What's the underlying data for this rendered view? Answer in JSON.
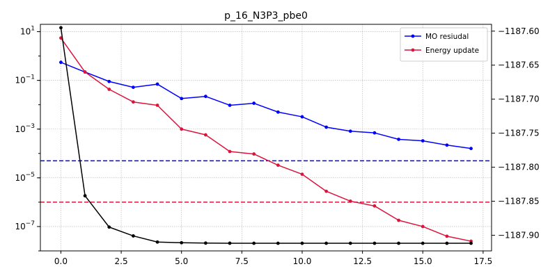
{
  "chart_data": {
    "type": "line",
    "title": "p_16_N3P3_pbe0",
    "xlabel": "",
    "ylabel": "",
    "xlim": [
      -0.85,
      17.85
    ],
    "x_ticks": [
      0.0,
      2.5,
      5.0,
      7.5,
      10.0,
      12.5,
      15.0,
      17.5
    ],
    "x_tick_labels": [
      "0.0",
      "2.5",
      "5.0",
      "7.5",
      "10.0",
      "12.5",
      "15.0",
      "17.5"
    ],
    "y_left": {
      "scale": "log",
      "lim": [
        1e-08,
        20
      ],
      "ticks": [
        1e-07,
        1e-05,
        0.001,
        0.1,
        10
      ],
      "tick_labels": [
        {
          "base": "10",
          "exp": "−7"
        },
        {
          "base": "10",
          "exp": "−5"
        },
        {
          "base": "10",
          "exp": "−3"
        },
        {
          "base": "10",
          "exp": "−1"
        },
        {
          "base": "10",
          "exp": "1"
        }
      ]
    },
    "y_right": {
      "scale": "linear",
      "lim": [
        -1187.923,
        -1187.59
      ],
      "ticks": [
        -1187.6,
        -1187.65,
        -1187.7,
        -1187.75,
        -1187.8,
        -1187.85,
        -1187.9
      ],
      "tick_labels": [
        "−1187.60",
        "−1187.65",
        "−1187.70",
        "−1187.75",
        "−1187.80",
        "−1187.85",
        "−1187.90"
      ]
    },
    "grid": true,
    "legend_position": "top-right",
    "series": [
      {
        "name": "MO resiudal",
        "axis": "left",
        "color": "#0000ff",
        "x": [
          0,
          1,
          2,
          3,
          4,
          5,
          6,
          7,
          8,
          9,
          10,
          11,
          12,
          13,
          14,
          15,
          16,
          17
        ],
        "values": [
          0.55,
          0.22,
          0.09,
          0.052,
          0.07,
          0.018,
          0.022,
          0.0095,
          0.0115,
          0.005,
          0.0032,
          0.0012,
          0.00082,
          0.0007,
          0.00038,
          0.00033,
          0.00022,
          0.00016
        ]
      },
      {
        "name": "Energy update",
        "axis": "left",
        "color": "#dc143c",
        "x": [
          0,
          1,
          2,
          3,
          4,
          5,
          6,
          7,
          8,
          9,
          10,
          11,
          12,
          13,
          14,
          15,
          16,
          17
        ],
        "values": [
          5.5,
          0.22,
          0.043,
          0.013,
          0.0095,
          0.001,
          0.00058,
          0.00012,
          9.5e-05,
          3.3e-05,
          1.4e-05,
          2.8e-06,
          1.1e-06,
          7e-07,
          1.8e-07,
          1e-07,
          4e-08,
          2.5e-08
        ]
      },
      {
        "axis": "right",
        "color": "#000000",
        "x": [
          0,
          1,
          2,
          3,
          4,
          5,
          6,
          7,
          8,
          9,
          10,
          11,
          12,
          13,
          14,
          15,
          16,
          17
        ],
        "values": [
          -1187.595,
          -1187.842,
          -1187.888,
          -1187.901,
          -1187.91,
          -1187.911,
          -1187.9115,
          -1187.9117,
          -1187.9118,
          -1187.9118,
          -1187.9118,
          -1187.9118,
          -1187.9118,
          -1187.9118,
          -1187.9118,
          -1187.9118,
          -1187.9118,
          -1187.9118
        ]
      }
    ],
    "threshold_lines": [
      {
        "axis": "left",
        "value": 5e-05,
        "color": "#0000ff",
        "style": "dashed"
      },
      {
        "axis": "left",
        "value": 1e-06,
        "color": "#dc143c",
        "style": "dashed"
      }
    ]
  }
}
